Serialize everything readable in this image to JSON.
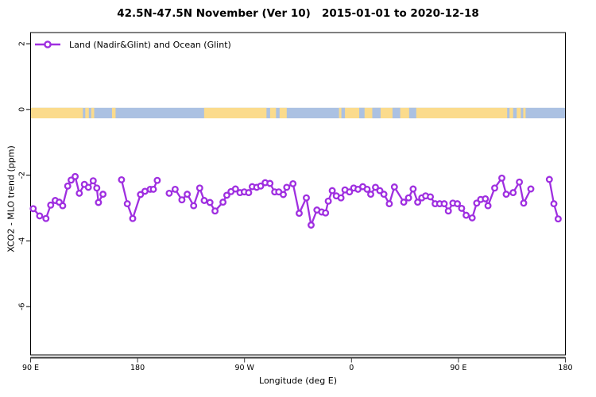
{
  "title": "42.5N-47.5N November (Ver 10)   2015-01-01 to 2020-12-18",
  "legend": {
    "label": "Land (Nadir&Glint) and Ocean (Glint)"
  },
  "axes": {
    "x": {
      "label": "Longitude (deg E)",
      "ticks": [
        {
          "lon": 90,
          "label": "90 E"
        },
        {
          "lon": 180,
          "label": "180"
        },
        {
          "lon": 270,
          "label": "90 W"
        },
        {
          "lon": 360,
          "label": "0"
        },
        {
          "lon": 450,
          "label": "90 E"
        },
        {
          "lon": 540,
          "label": "180"
        }
      ]
    },
    "y": {
      "label": "XCO2 - MLO trend (ppm)",
      "ticks": [
        {
          "value": 2,
          "label": "2"
        },
        {
          "value": 0,
          "label": "0"
        },
        {
          "value": -2,
          "label": "-2"
        },
        {
          "value": -4,
          "label": "-4"
        },
        {
          "value": -6,
          "label": "-6"
        }
      ]
    }
  },
  "colors": {
    "series": "#9F2FE0",
    "land": "#FBDB8C",
    "ocean": "#ABC1E2",
    "box": "#000000",
    "axis_line": "#3C3C3C",
    "marker_fill": "#FFFFFF"
  },
  "chart_data": {
    "type": "line",
    "marker": "open-circle",
    "title": "42.5N-47.5N November (Ver 10)   2015-01-01 to 2020-12-18",
    "xlabel": "Longitude (deg E)",
    "ylabel": "XCO2 - MLO trend (ppm)",
    "xlim": [
      90,
      540
    ],
    "ylim": [
      -7.47,
      2.34
    ],
    "x_wrap_note": "longitude axis wraps eastward: 90E,180,90W,0,90E,180",
    "legend_position": "top-left",
    "grid": false,
    "series": [
      {
        "name": "Land (Nadir&Glint) and Ocean (Glint)",
        "segments": [
          [
            [
              92.2,
              -3.02
            ],
            [
              97.6,
              -3.24
            ],
            [
              102.9,
              -3.32
            ],
            [
              106.9,
              -2.91
            ],
            [
              110.7,
              -2.77
            ],
            [
              114.1,
              -2.82
            ],
            [
              117.0,
              -2.93
            ],
            [
              121.2,
              -2.33
            ],
            [
              124.1,
              -2.15
            ],
            [
              127.5,
              -2.04
            ],
            [
              131.0,
              -2.55
            ],
            [
              135.3,
              -2.28
            ],
            [
              138.6,
              -2.37
            ],
            [
              142.7,
              -2.17
            ],
            [
              145.7,
              -2.39
            ],
            [
              147.1,
              -2.83
            ],
            [
              150.9,
              -2.58
            ]
          ],
          [
            [
              166.5,
              -2.14
            ],
            [
              171.4,
              -2.87
            ],
            [
              175.9,
              -3.32
            ],
            [
              182.5,
              -2.59
            ],
            [
              186.2,
              -2.49
            ],
            [
              190.6,
              -2.43
            ],
            [
              193.3,
              -2.43
            ],
            [
              196.6,
              -2.16
            ]
          ],
          [
            [
              206.6,
              -2.55
            ],
            [
              211.6,
              -2.43
            ],
            [
              217.3,
              -2.75
            ],
            [
              221.8,
              -2.58
            ],
            [
              227.2,
              -2.93
            ],
            [
              232.3,
              -2.39
            ],
            [
              236.1,
              -2.77
            ],
            [
              240.9,
              -2.83
            ],
            [
              245.2,
              -3.09
            ],
            [
              251.9,
              -2.82
            ],
            [
              255.1,
              -2.61
            ],
            [
              258.6,
              -2.5
            ],
            [
              262.4,
              -2.42
            ],
            [
              266.2,
              -2.53
            ],
            [
              269.8,
              -2.51
            ],
            [
              273.5,
              -2.53
            ],
            [
              276.5,
              -2.35
            ],
            [
              280.2,
              -2.37
            ],
            [
              283.6,
              -2.33
            ],
            [
              287.4,
              -2.23
            ],
            [
              291.4,
              -2.25
            ],
            [
              295.4,
              -2.51
            ],
            [
              298.8,
              -2.51
            ],
            [
              302.6,
              -2.59
            ],
            [
              305.5,
              -2.37
            ],
            [
              310.8,
              -2.26
            ],
            [
              316.0,
              -3.16
            ],
            [
              322.0,
              -2.69
            ],
            [
              326.0,
              -3.52
            ],
            [
              330.9,
              -3.06
            ],
            [
              334.9,
              -3.12
            ],
            [
              338.2,
              -3.15
            ],
            [
              340.5,
              -2.79
            ],
            [
              343.8,
              -2.47
            ],
            [
              347.2,
              -2.63
            ],
            [
              351.2,
              -2.69
            ],
            [
              354.5,
              -2.45
            ],
            [
              358.3,
              -2.51
            ],
            [
              361.9,
              -2.39
            ],
            [
              365.5,
              -2.43
            ],
            [
              369.5,
              -2.35
            ],
            [
              373.2,
              -2.43
            ],
            [
              376.2,
              -2.58
            ],
            [
              380.2,
              -2.37
            ],
            [
              383.9,
              -2.47
            ],
            [
              387.3,
              -2.58
            ],
            [
              391.8,
              -2.87
            ],
            [
              396.1,
              -2.36
            ],
            [
              404.0,
              -2.82
            ],
            [
              408.0,
              -2.69
            ],
            [
              411.9,
              -2.42
            ],
            [
              415.7,
              -2.82
            ],
            [
              419.2,
              -2.69
            ],
            [
              422.4,
              -2.63
            ],
            [
              426.4,
              -2.66
            ],
            [
              430.4,
              -2.87
            ],
            [
              434.2,
              -2.87
            ],
            [
              438.0,
              -2.87
            ],
            [
              441.5,
              -3.09
            ],
            [
              445.3,
              -2.85
            ],
            [
              449.1,
              -2.87
            ],
            [
              452.7,
              -3.01
            ],
            [
              456.5,
              -3.22
            ],
            [
              461.6,
              -3.3
            ],
            [
              465.4,
              -2.85
            ],
            [
              468.7,
              -2.74
            ],
            [
              472.7,
              -2.72
            ],
            [
              474.9,
              -2.93
            ],
            [
              480.5,
              -2.39
            ],
            [
              486.5,
              -2.09
            ],
            [
              490.2,
              -2.58
            ],
            [
              496.0,
              -2.53
            ],
            [
              501.3,
              -2.21
            ],
            [
              504.9,
              -2.85
            ],
            [
              510.9,
              -2.42
            ]
          ],
          [
            [
              526.5,
              -2.13
            ],
            [
              530.3,
              -2.87
            ],
            [
              533.9,
              -3.33
            ]
          ]
        ]
      }
    ],
    "map_strip": {
      "description": "land/ocean reference band at latitude 42.5N-47.5N drawn near y=0",
      "value_top": 0.05,
      "value_bottom": -0.27,
      "land_segments": [
        [
          90,
          134
        ],
        [
          136,
          139
        ],
        [
          141,
          143.5
        ],
        [
          158.5,
          161.5
        ],
        [
          236,
          288.5
        ],
        [
          291.5,
          296.5
        ],
        [
          299.5,
          305.5
        ],
        [
          349.5,
          491
        ],
        [
          493,
          496
        ],
        [
          499,
          502.5
        ],
        [
          504.5,
          506.5
        ]
      ],
      "ocean_patches": [
        [
          351.5,
          354.5
        ],
        [
          366.5,
          371
        ],
        [
          377.5,
          384.5
        ],
        [
          394.5,
          401
        ],
        [
          408.5,
          414.5
        ]
      ]
    }
  }
}
